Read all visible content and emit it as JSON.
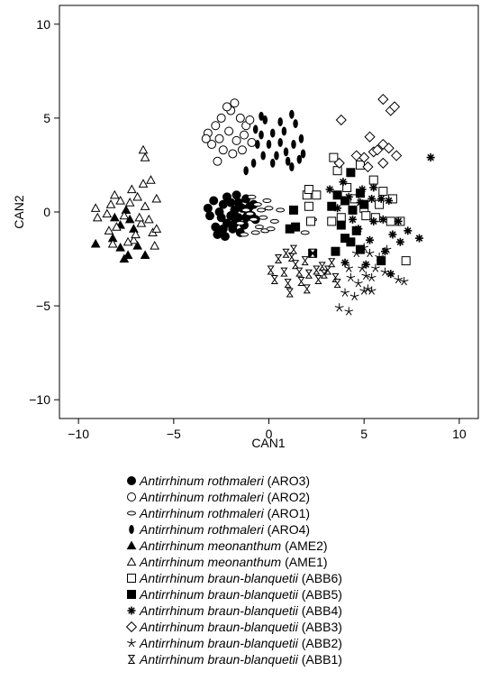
{
  "chart_data": {
    "type": "scatter",
    "title": "",
    "xlabel": "CAN1",
    "ylabel": "CAN2",
    "xlim": [
      -11,
      11
    ],
    "ylim": [
      -11,
      11
    ],
    "xticks": [
      -10,
      -5,
      0,
      5,
      10
    ],
    "yticks": [
      -10,
      -5,
      0,
      5,
      10
    ],
    "legend_position": "bottom",
    "series": [
      {
        "name": "Antirrhinum rothmaleri (ARO3)",
        "species": "Antirrhinum rothmaleri",
        "code": "(ARO3)",
        "marker": "circle-filled",
        "points": [
          [
            -2.6,
            0.0
          ],
          [
            -2.4,
            0.4
          ],
          [
            -2.2,
            0.8
          ],
          [
            -2.0,
            0.5
          ],
          [
            -1.8,
            0.1
          ],
          [
            -2.5,
            -0.3
          ],
          [
            -2.2,
            -0.6
          ],
          [
            -1.9,
            -0.9
          ],
          [
            -1.6,
            -0.3
          ],
          [
            -1.4,
            0.2
          ],
          [
            -1.2,
            0.7
          ],
          [
            -1.0,
            0.3
          ],
          [
            -0.9,
            -0.2
          ],
          [
            -2.8,
            -0.8
          ],
          [
            -3.1,
            -0.2
          ],
          [
            -3.2,
            0.2
          ],
          [
            -2.7,
            -1.2
          ],
          [
            -2.3,
            -1.3
          ],
          [
            -1.7,
            0.9
          ],
          [
            -1.5,
            -1.1
          ],
          [
            -1.3,
            -0.7
          ],
          [
            -1.1,
            0.0
          ],
          [
            -0.8,
            0.4
          ],
          [
            -0.7,
            -0.4
          ],
          [
            -2.0,
            -0.2
          ],
          [
            -1.6,
            0.5
          ],
          [
            -2.9,
            0.6
          ],
          [
            -2.4,
            -0.9
          ],
          [
            -1.8,
            -0.6
          ],
          [
            -1.2,
            -0.3
          ]
        ]
      },
      {
        "name": "Antirrhinum rothmaleri (ARO2)",
        "species": "Antirrhinum rothmaleri",
        "code": "(ARO2)",
        "marker": "circle-open",
        "points": [
          [
            -3.2,
            4.2
          ],
          [
            -2.8,
            4.6
          ],
          [
            -2.5,
            5.0
          ],
          [
            -2.0,
            5.4
          ],
          [
            -1.5,
            5.0
          ],
          [
            -1.2,
            4.6
          ],
          [
            -2.1,
            4.3
          ],
          [
            -2.6,
            3.9
          ],
          [
            -3.0,
            3.6
          ],
          [
            -1.7,
            3.8
          ],
          [
            -1.3,
            4.1
          ],
          [
            -2.4,
            3.3
          ],
          [
            -1.9,
            3.1
          ],
          [
            -1.0,
            4.9
          ],
          [
            -2.7,
            2.7
          ],
          [
            -1.8,
            5.8
          ],
          [
            -3.3,
            3.9
          ],
          [
            -1.4,
            3.3
          ],
          [
            -0.9,
            3.7
          ],
          [
            -2.2,
            5.6
          ]
        ]
      },
      {
        "name": "Antirrhinum rothmaleri (ARO1)",
        "species": "Antirrhinum rothmaleri",
        "code": "(ARO1)",
        "marker": "ellipse-open",
        "points": [
          [
            -1.0,
            -0.1
          ],
          [
            -0.6,
            0.4
          ],
          [
            -0.3,
            -0.3
          ],
          [
            0.0,
            0.2
          ],
          [
            -0.5,
            -0.8
          ],
          [
            -0.2,
            -1.0
          ],
          [
            -1.5,
            -0.6
          ],
          [
            -1.2,
            0.1
          ],
          [
            -0.8,
            -0.4
          ],
          [
            0.3,
            -0.5
          ],
          [
            -0.9,
            0.8
          ],
          [
            -0.4,
            0.1
          ],
          [
            -0.7,
            -1.1
          ],
          [
            0.1,
            -0.9
          ],
          [
            -1.3,
            -1.2
          ],
          [
            -0.1,
            0.6
          ],
          [
            2.1,
            0.4
          ],
          [
            2.3,
            -0.4
          ],
          [
            1.9,
            -1.1
          ],
          [
            0.6,
            0.1
          ]
        ]
      },
      {
        "name": "Antirrhinum rothmaleri (ARO4)",
        "species": "Antirrhinum rothmaleri",
        "code": "(ARO4)",
        "marker": "ellipse-filled",
        "points": [
          [
            -0.6,
            3.6
          ],
          [
            -0.4,
            4.1
          ],
          [
            0.0,
            3.6
          ],
          [
            0.2,
            4.2
          ],
          [
            0.6,
            3.7
          ],
          [
            0.9,
            3.2
          ],
          [
            1.3,
            3.6
          ],
          [
            1.7,
            3.9
          ],
          [
            1.4,
            4.7
          ],
          [
            0.8,
            4.3
          ],
          [
            0.4,
            3.0
          ],
          [
            1.0,
            2.7
          ],
          [
            1.8,
            3.1
          ],
          [
            -0.3,
            3.0
          ],
          [
            -0.8,
            2.6
          ],
          [
            -1.2,
            2.2
          ],
          [
            1.2,
            5.2
          ],
          [
            0.2,
            2.6
          ],
          [
            -0.2,
            4.9
          ],
          [
            -0.4,
            5.1
          ],
          [
            1.6,
            2.8
          ],
          [
            -0.7,
            4.4
          ],
          [
            0.6,
            4.8
          ],
          [
            1.2,
            2.4
          ]
        ]
      },
      {
        "name": "Antirrhinum meonanthum (AME2)",
        "species": "Antirrhinum meonanthum",
        "code": "(AME2)",
        "marker": "triangle-filled",
        "points": [
          [
            -9.1,
            -1.7
          ],
          [
            -8.2,
            -1.4
          ],
          [
            -7.8,
            -0.7
          ],
          [
            -7.6,
            -2.5
          ],
          [
            -7.4,
            -2.3
          ],
          [
            -7.8,
            -1.9
          ],
          [
            -7.3,
            -0.4
          ],
          [
            -7.1,
            -0.9
          ],
          [
            -6.9,
            -1.8
          ],
          [
            -6.5,
            -2.3
          ],
          [
            -8.1,
            -0.3
          ],
          [
            -7.5,
            0.1
          ]
        ]
      },
      {
        "name": "Antirrhinum meonanthum (AME1)",
        "species": "Antirrhinum meonanthum",
        "code": "(AME1)",
        "marker": "triangle-open",
        "points": [
          [
            -9.1,
            0.2
          ],
          [
            -9.0,
            -0.3
          ],
          [
            -8.5,
            -0.1
          ],
          [
            -8.3,
            0.4
          ],
          [
            -8.1,
            0.9
          ],
          [
            -8.0,
            -0.8
          ],
          [
            -7.8,
            0.6
          ],
          [
            -7.6,
            -0.2
          ],
          [
            -7.3,
            0.5
          ],
          [
            -7.2,
            1.2
          ],
          [
            -7.1,
            -1.5
          ],
          [
            -6.9,
            0.8
          ],
          [
            -6.7,
            -0.6
          ],
          [
            -6.6,
            1.5
          ],
          [
            -6.5,
            0.3
          ],
          [
            -6.3,
            -0.4
          ],
          [
            -6.1,
            -1.1
          ],
          [
            -5.9,
            0.7
          ],
          [
            -5.9,
            -0.9
          ],
          [
            -6.6,
            3.3
          ],
          [
            -6.5,
            2.9
          ],
          [
            -6.2,
            1.7
          ],
          [
            -7.0,
            -1.2
          ],
          [
            -8.4,
            -1.0
          ],
          [
            -6.8,
            -0.3
          ],
          [
            -7.4,
            -1.6
          ],
          [
            -8.2,
            -1.7
          ],
          [
            -6.0,
            -1.8
          ]
        ]
      },
      {
        "name": "Antirrhinum braun-blanquetii (ABB6)",
        "species": "Antirrhinum braun-blanquetii",
        "code": "(ABB6)",
        "marker": "square-open",
        "points": [
          [
            3.4,
            2.9
          ],
          [
            3.6,
            2.2
          ],
          [
            4.1,
            1.3
          ],
          [
            4.5,
            0.7
          ],
          [
            4.8,
            2.5
          ],
          [
            5.0,
            0.2
          ],
          [
            5.1,
            -0.2
          ],
          [
            5.5,
            1.7
          ],
          [
            5.6,
            -0.3
          ],
          [
            6.0,
            1.1
          ],
          [
            6.4,
            -0.5
          ],
          [
            3.8,
            -0.3
          ],
          [
            3.3,
            -0.5
          ],
          [
            2.0,
            0.9
          ],
          [
            2.1,
            0.3
          ],
          [
            2.2,
            -0.5
          ],
          [
            2.1,
            1.2
          ],
          [
            2.5,
            0.9
          ],
          [
            7.2,
            -2.6
          ],
          [
            6.5,
            0.7
          ],
          [
            5.8,
            0.4
          ],
          [
            6.9,
            -0.5
          ]
        ]
      },
      {
        "name": "Antirrhinum braun-blanquetii (ABB5)",
        "species": "Antirrhinum braun-blanquetii",
        "code": "(ABB5)",
        "marker": "square-filled",
        "points": [
          [
            1.3,
            0.1
          ],
          [
            1.1,
            -0.9
          ],
          [
            1.4,
            -0.8
          ],
          [
            2.3,
            -2.2
          ],
          [
            3.5,
            -2.1
          ],
          [
            4.0,
            -1.4
          ],
          [
            4.3,
            -1.6
          ],
          [
            4.6,
            -1.0
          ],
          [
            5.0,
            0.4
          ],
          [
            4.8,
            -2.0
          ],
          [
            4.4,
            0.1
          ],
          [
            5.9,
            -2.6
          ],
          [
            4.3,
            2.1
          ],
          [
            3.6,
            0.9
          ],
          [
            4.0,
            0.6
          ],
          [
            3.3,
            0.3
          ],
          [
            3.8,
            -0.7
          ],
          [
            4.8,
            1.0
          ]
        ]
      },
      {
        "name": "Antirrhinum braun-blanquetii (ABB4)",
        "species": "Antirrhinum braun-blanquetii",
        "code": "(ABB4)",
        "marker": "asterisk",
        "points": [
          [
            3.2,
            1.2
          ],
          [
            3.6,
            0.2
          ],
          [
            4.2,
            0.8
          ],
          [
            4.4,
            -0.4
          ],
          [
            5.3,
            -1.5
          ],
          [
            5.5,
            -0.5
          ],
          [
            6.0,
            -0.4
          ],
          [
            6.3,
            0.6
          ],
          [
            6.5,
            -1.2
          ],
          [
            6.9,
            -1.6
          ],
          [
            7.3,
            -1.0
          ],
          [
            7.9,
            -1.4
          ],
          [
            8.5,
            2.9
          ],
          [
            4.0,
            -2.7
          ],
          [
            5.1,
            -2.8
          ],
          [
            6.4,
            -3.3
          ],
          [
            5.4,
            0.7
          ],
          [
            4.9,
            1.2
          ],
          [
            5.9,
            0.7
          ],
          [
            3.9,
            1.6
          ],
          [
            6.1,
            -2.1
          ],
          [
            6.8,
            -0.5
          ],
          [
            5.5,
            1.3
          ],
          [
            4.7,
            -0.9
          ],
          [
            4.8,
            0.5
          ]
        ]
      },
      {
        "name": "Antirrhinum braun-blanquetii (ABB3)",
        "species": "Antirrhinum braun-blanquetii",
        "code": "(ABB3)",
        "marker": "diamond-open",
        "points": [
          [
            3.8,
            4.9
          ],
          [
            6.0,
            6.0
          ],
          [
            6.4,
            5.4
          ],
          [
            6.6,
            5.6
          ],
          [
            5.3,
            4.0
          ],
          [
            5.5,
            3.2
          ],
          [
            6.0,
            3.6
          ],
          [
            6.3,
            3.4
          ],
          [
            6.7,
            3.0
          ],
          [
            5.0,
            2.9
          ],
          [
            6.0,
            2.6
          ],
          [
            3.7,
            2.6
          ],
          [
            4.6,
            3.0
          ],
          [
            5.7,
            3.3
          ],
          [
            5.2,
            2.4
          ]
        ]
      },
      {
        "name": "Antirrhinum braun-blanquetii (ABB2)",
        "species": "Antirrhinum braun-blanquetii",
        "code": "(ABB2)",
        "marker": "star-open",
        "points": [
          [
            4.2,
            -3.0
          ],
          [
            4.3,
            -3.5
          ],
          [
            4.5,
            -4.5
          ],
          [
            5.1,
            -3.4
          ],
          [
            5.2,
            -4.1
          ],
          [
            5.4,
            -3.5
          ],
          [
            5.6,
            -3.0
          ],
          [
            5.0,
            -4.2
          ],
          [
            4.0,
            -4.3
          ],
          [
            3.7,
            -5.1
          ],
          [
            4.2,
            -5.3
          ],
          [
            4.7,
            -3.8
          ],
          [
            6.8,
            -3.6
          ],
          [
            7.1,
            -3.7
          ],
          [
            4.6,
            -2.2
          ],
          [
            5.3,
            -2.2
          ],
          [
            4.9,
            -3.0
          ],
          [
            5.8,
            -2.4
          ],
          [
            6.2,
            -2.0
          ],
          [
            5.0,
            -1.9
          ],
          [
            5.4,
            -4.2
          ],
          [
            6.1,
            -3.2
          ]
        ]
      },
      {
        "name": "Antirrhinum braun-blanquetii (ABB1)",
        "species": "Antirrhinum braun-blanquetii",
        "code": "(ABB1)",
        "marker": "hourglass",
        "points": [
          [
            0.1,
            -3.1
          ],
          [
            0.3,
            -3.6
          ],
          [
            0.5,
            -2.5
          ],
          [
            0.8,
            -3.2
          ],
          [
            1.0,
            -3.8
          ],
          [
            1.1,
            -4.3
          ],
          [
            1.2,
            -2.4
          ],
          [
            1.4,
            -2.8
          ],
          [
            1.6,
            -3.2
          ],
          [
            1.7,
            -3.7
          ],
          [
            1.9,
            -2.6
          ],
          [
            2.0,
            -4.1
          ],
          [
            2.1,
            -3.3
          ],
          [
            2.3,
            -2.2
          ],
          [
            2.5,
            -3.1
          ],
          [
            2.6,
            -3.6
          ],
          [
            2.8,
            -2.9
          ],
          [
            2.9,
            -3.3
          ],
          [
            3.1,
            -3.1
          ],
          [
            3.3,
            -2.7
          ],
          [
            3.5,
            -3.5
          ],
          [
            3.6,
            -3.8
          ],
          [
            1.3,
            -2.0
          ],
          [
            0.9,
            -2.2
          ]
        ]
      }
    ]
  }
}
